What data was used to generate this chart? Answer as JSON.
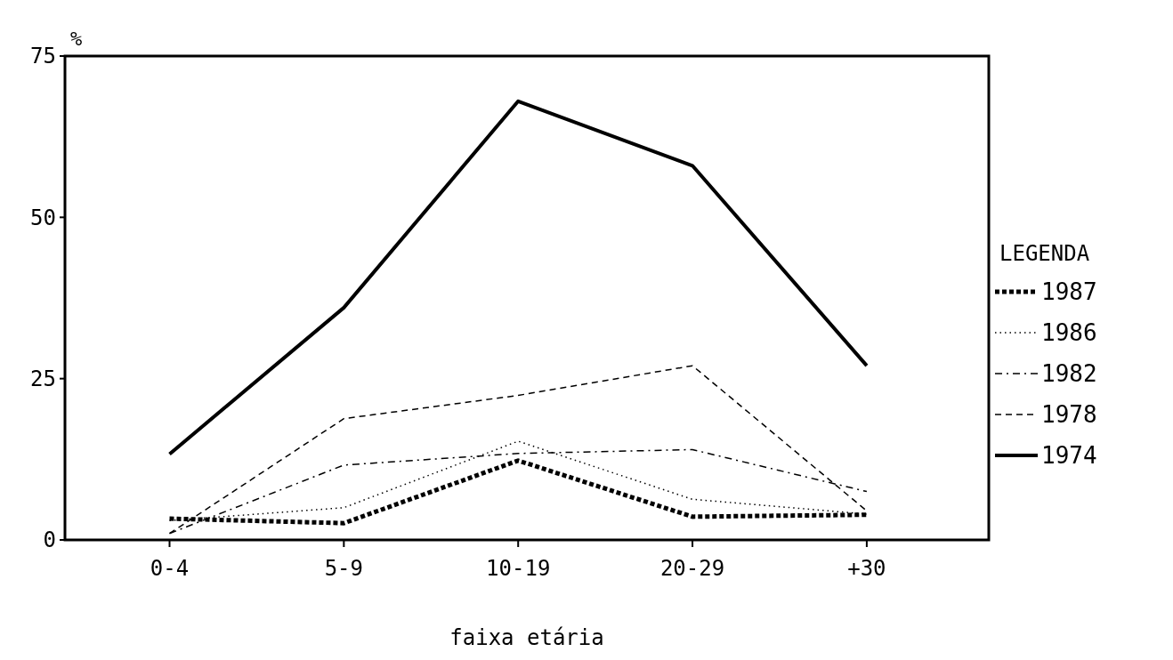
{
  "chart_data": {
    "type": "line",
    "ylabel": "%",
    "xlabel": "faixa etária",
    "legend_title": "LEGENDA",
    "legend": "right",
    "grid": false,
    "categories": [
      "0-4",
      "5-9",
      "10-19",
      "20-29",
      "+30"
    ],
    "ylim": [
      0,
      75
    ],
    "yticks": [
      0,
      25,
      50,
      75
    ],
    "series": [
      {
        "name": "1987",
        "color": "#000000",
        "line_style": "heavy-dotted",
        "values": [
          3.3,
          2.6,
          12.3,
          3.6,
          3.9
        ]
      },
      {
        "name": "1986",
        "color": "#000000",
        "line_style": "dotted",
        "values": [
          3,
          5,
          15.3,
          6.3,
          4
        ]
      },
      {
        "name": "1982",
        "color": "#000000",
        "line_style": "dashdot",
        "values": [
          1,
          11.6,
          13.4,
          14,
          7.5
        ]
      },
      {
        "name": "1978",
        "color": "#000000",
        "line_style": "dashed",
        "values": [
          1,
          18.8,
          22.4,
          27,
          4.5
        ]
      },
      {
        "name": "1974",
        "color": "#000000",
        "line_style": "solid",
        "values": [
          13.3,
          36,
          68,
          58,
          27
        ]
      }
    ]
  }
}
